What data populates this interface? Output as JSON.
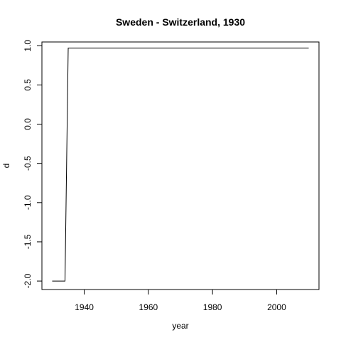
{
  "chart_data": {
    "type": "line",
    "title": "Sweden - Switzerland, 1930",
    "xlabel": "year",
    "ylabel": "d",
    "xlim": [
      1926.8,
      2013.2
    ],
    "ylim": [
      -2.108,
      1.048
    ],
    "x_ticks": [
      {
        "value": 1940,
        "label": "1940"
      },
      {
        "value": 1960,
        "label": "1960"
      },
      {
        "value": 1980,
        "label": "1980"
      },
      {
        "value": 2000,
        "label": "2000"
      }
    ],
    "y_ticks": [
      {
        "value": -2.0,
        "label": "-2.0"
      },
      {
        "value": -1.5,
        "label": "-1.5"
      },
      {
        "value": -1.0,
        "label": "-1.0"
      },
      {
        "value": -0.5,
        "label": "-0.5"
      },
      {
        "value": 0.0,
        "label": "0.0"
      },
      {
        "value": 0.5,
        "label": "0.5"
      },
      {
        "value": 1.0,
        "label": "1.0"
      }
    ],
    "series": [
      {
        "color": "#000000",
        "x": [
          1930,
          1934,
          1935,
          2010
        ],
        "y": [
          -2.0,
          -2.0,
          0.97,
          0.97
        ]
      }
    ],
    "grid": false,
    "legend": "none"
  }
}
